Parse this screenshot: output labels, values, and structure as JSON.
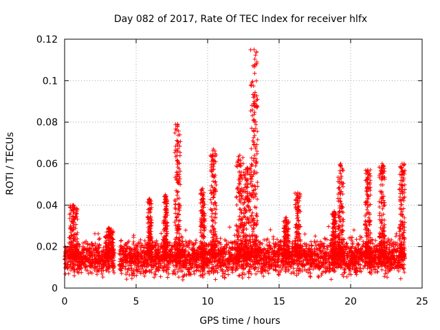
{
  "chart_data": {
    "type": "scatter",
    "title": "Day 082 of 2017, Rate Of TEC Index for receiver hlfx",
    "xlabel": "GPS time / hours",
    "ylabel": "ROTI / TECUs",
    "xlim": [
      0,
      25
    ],
    "ylim": [
      0,
      0.12
    ],
    "x_ticks": [
      "0",
      "5",
      "10",
      "15",
      "20",
      "25"
    ],
    "y_ticks": [
      "0",
      "0.02",
      "0.04",
      "0.06",
      "0.08",
      "0.1",
      "0.12"
    ],
    "x_tick_values": [
      0,
      5,
      10,
      15,
      20,
      25
    ],
    "y_tick_values": [
      0,
      0.02,
      0.04,
      0.06,
      0.08,
      0.1,
      0.12
    ],
    "grid": true,
    "marker": "+",
    "color": "#ff0000",
    "series": [
      {
        "data_gap": [
          3.5,
          3.8
        ],
        "bands": [
          {
            "x": [
              0.0,
              3.5
            ],
            "y": [
              0.004,
              0.024
            ]
          },
          {
            "x": [
              3.8,
              23.8
            ],
            "y": [
              0.003,
              0.026
            ]
          }
        ],
        "spikes": [
          {
            "x": [
              0.3,
              0.9
            ],
            "ymax": 0.04
          },
          {
            "x": [
              2.8,
              3.4
            ],
            "ymax": 0.029
          },
          {
            "x": [
              5.8,
              6.1
            ],
            "ymax": 0.043
          },
          {
            "x": [
              6.9,
              7.2
            ],
            "ymax": 0.045
          },
          {
            "x": [
              7.7,
              8.1
            ],
            "ymax": 0.079
          },
          {
            "x": [
              9.5,
              9.8
            ],
            "ymax": 0.048
          },
          {
            "x": [
              10.2,
              10.6
            ],
            "ymax": 0.067
          },
          {
            "x": [
              12.0,
              12.5
            ],
            "ymax": 0.064
          },
          {
            "x": [
              12.5,
              13.0
            ],
            "ymax": 0.058
          },
          {
            "x": [
              13.0,
              13.5
            ],
            "ymax": 0.115
          },
          {
            "x": [
              15.3,
              15.7
            ],
            "ymax": 0.034
          },
          {
            "x": [
              16.1,
              16.5
            ],
            "ymax": 0.046
          },
          {
            "x": [
              18.7,
              19.0
            ],
            "ymax": 0.037
          },
          {
            "x": [
              19.1,
              19.5
            ],
            "ymax": 0.06
          },
          {
            "x": [
              21.0,
              21.4
            ],
            "ymax": 0.057
          },
          {
            "x": [
              22.0,
              22.4
            ],
            "ymax": 0.06
          },
          {
            "x": [
              23.4,
              23.8
            ],
            "ymax": 0.06
          }
        ]
      }
    ]
  }
}
